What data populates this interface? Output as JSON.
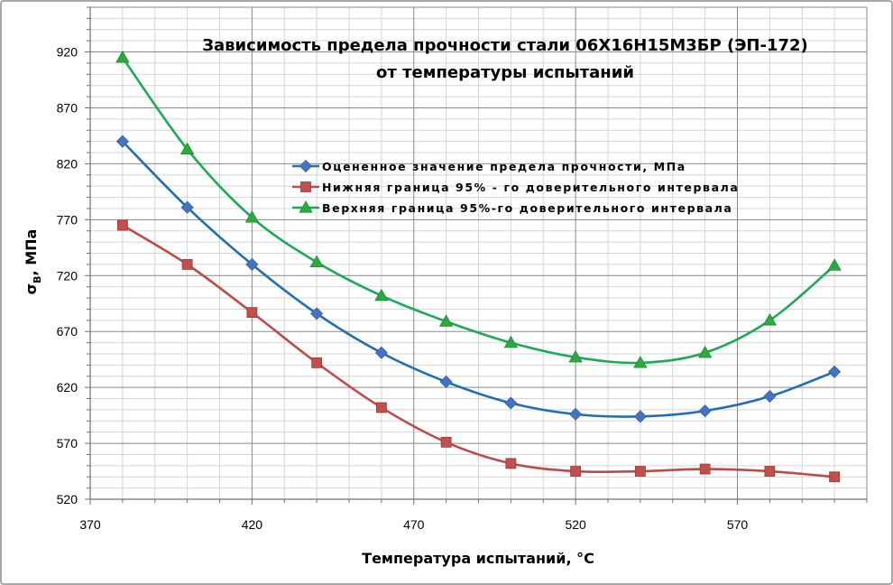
{
  "chart_data": {
    "type": "line",
    "title_line1": "Зависимость предела прочности стали 06Х16Н15М3БР (ЭП-172)",
    "title_line2": "от температуры испытаний",
    "xlabel": "Температура испытаний, °С",
    "ylabel_main": "σ",
    "ylabel_sub": "B",
    "ylabel_rest": ", МПа",
    "xlim": [
      370,
      610
    ],
    "ylim": [
      520,
      960
    ],
    "x_ticks": [
      370,
      420,
      470,
      520,
      570
    ],
    "y_ticks": [
      520,
      570,
      620,
      670,
      720,
      770,
      820,
      870,
      920
    ],
    "x_minor_step": 10,
    "y_minor_step": 10,
    "grid": true,
    "legend_position": "upper-center",
    "x": [
      380,
      400,
      420,
      440,
      460,
      480,
      500,
      520,
      540,
      560,
      580,
      600
    ],
    "series": [
      {
        "name": "Оцененное значение предела прочности, МПа",
        "color": "#4472C4",
        "line_color": "#1F6FB4",
        "marker": "diamond",
        "values": [
          840,
          781,
          730,
          686,
          651,
          625,
          606,
          596,
          594,
          599,
          612,
          634
        ]
      },
      {
        "name": "Нижняя граница 95% - го доверительного интервала",
        "color": "#C0504D",
        "line_color": "#BE4B48",
        "marker": "square",
        "values": [
          765,
          730,
          687,
          642,
          602,
          571,
          552,
          545,
          545,
          547,
          545,
          540
        ]
      },
      {
        "name": "Верхняя граница 95%-го доверительного интервала",
        "color": "#2DAA3F",
        "line_color": "#1BAA55",
        "marker": "triangle",
        "values": [
          915,
          833,
          772,
          732,
          702,
          679,
          660,
          647,
          642,
          651,
          680,
          729
        ]
      }
    ]
  }
}
